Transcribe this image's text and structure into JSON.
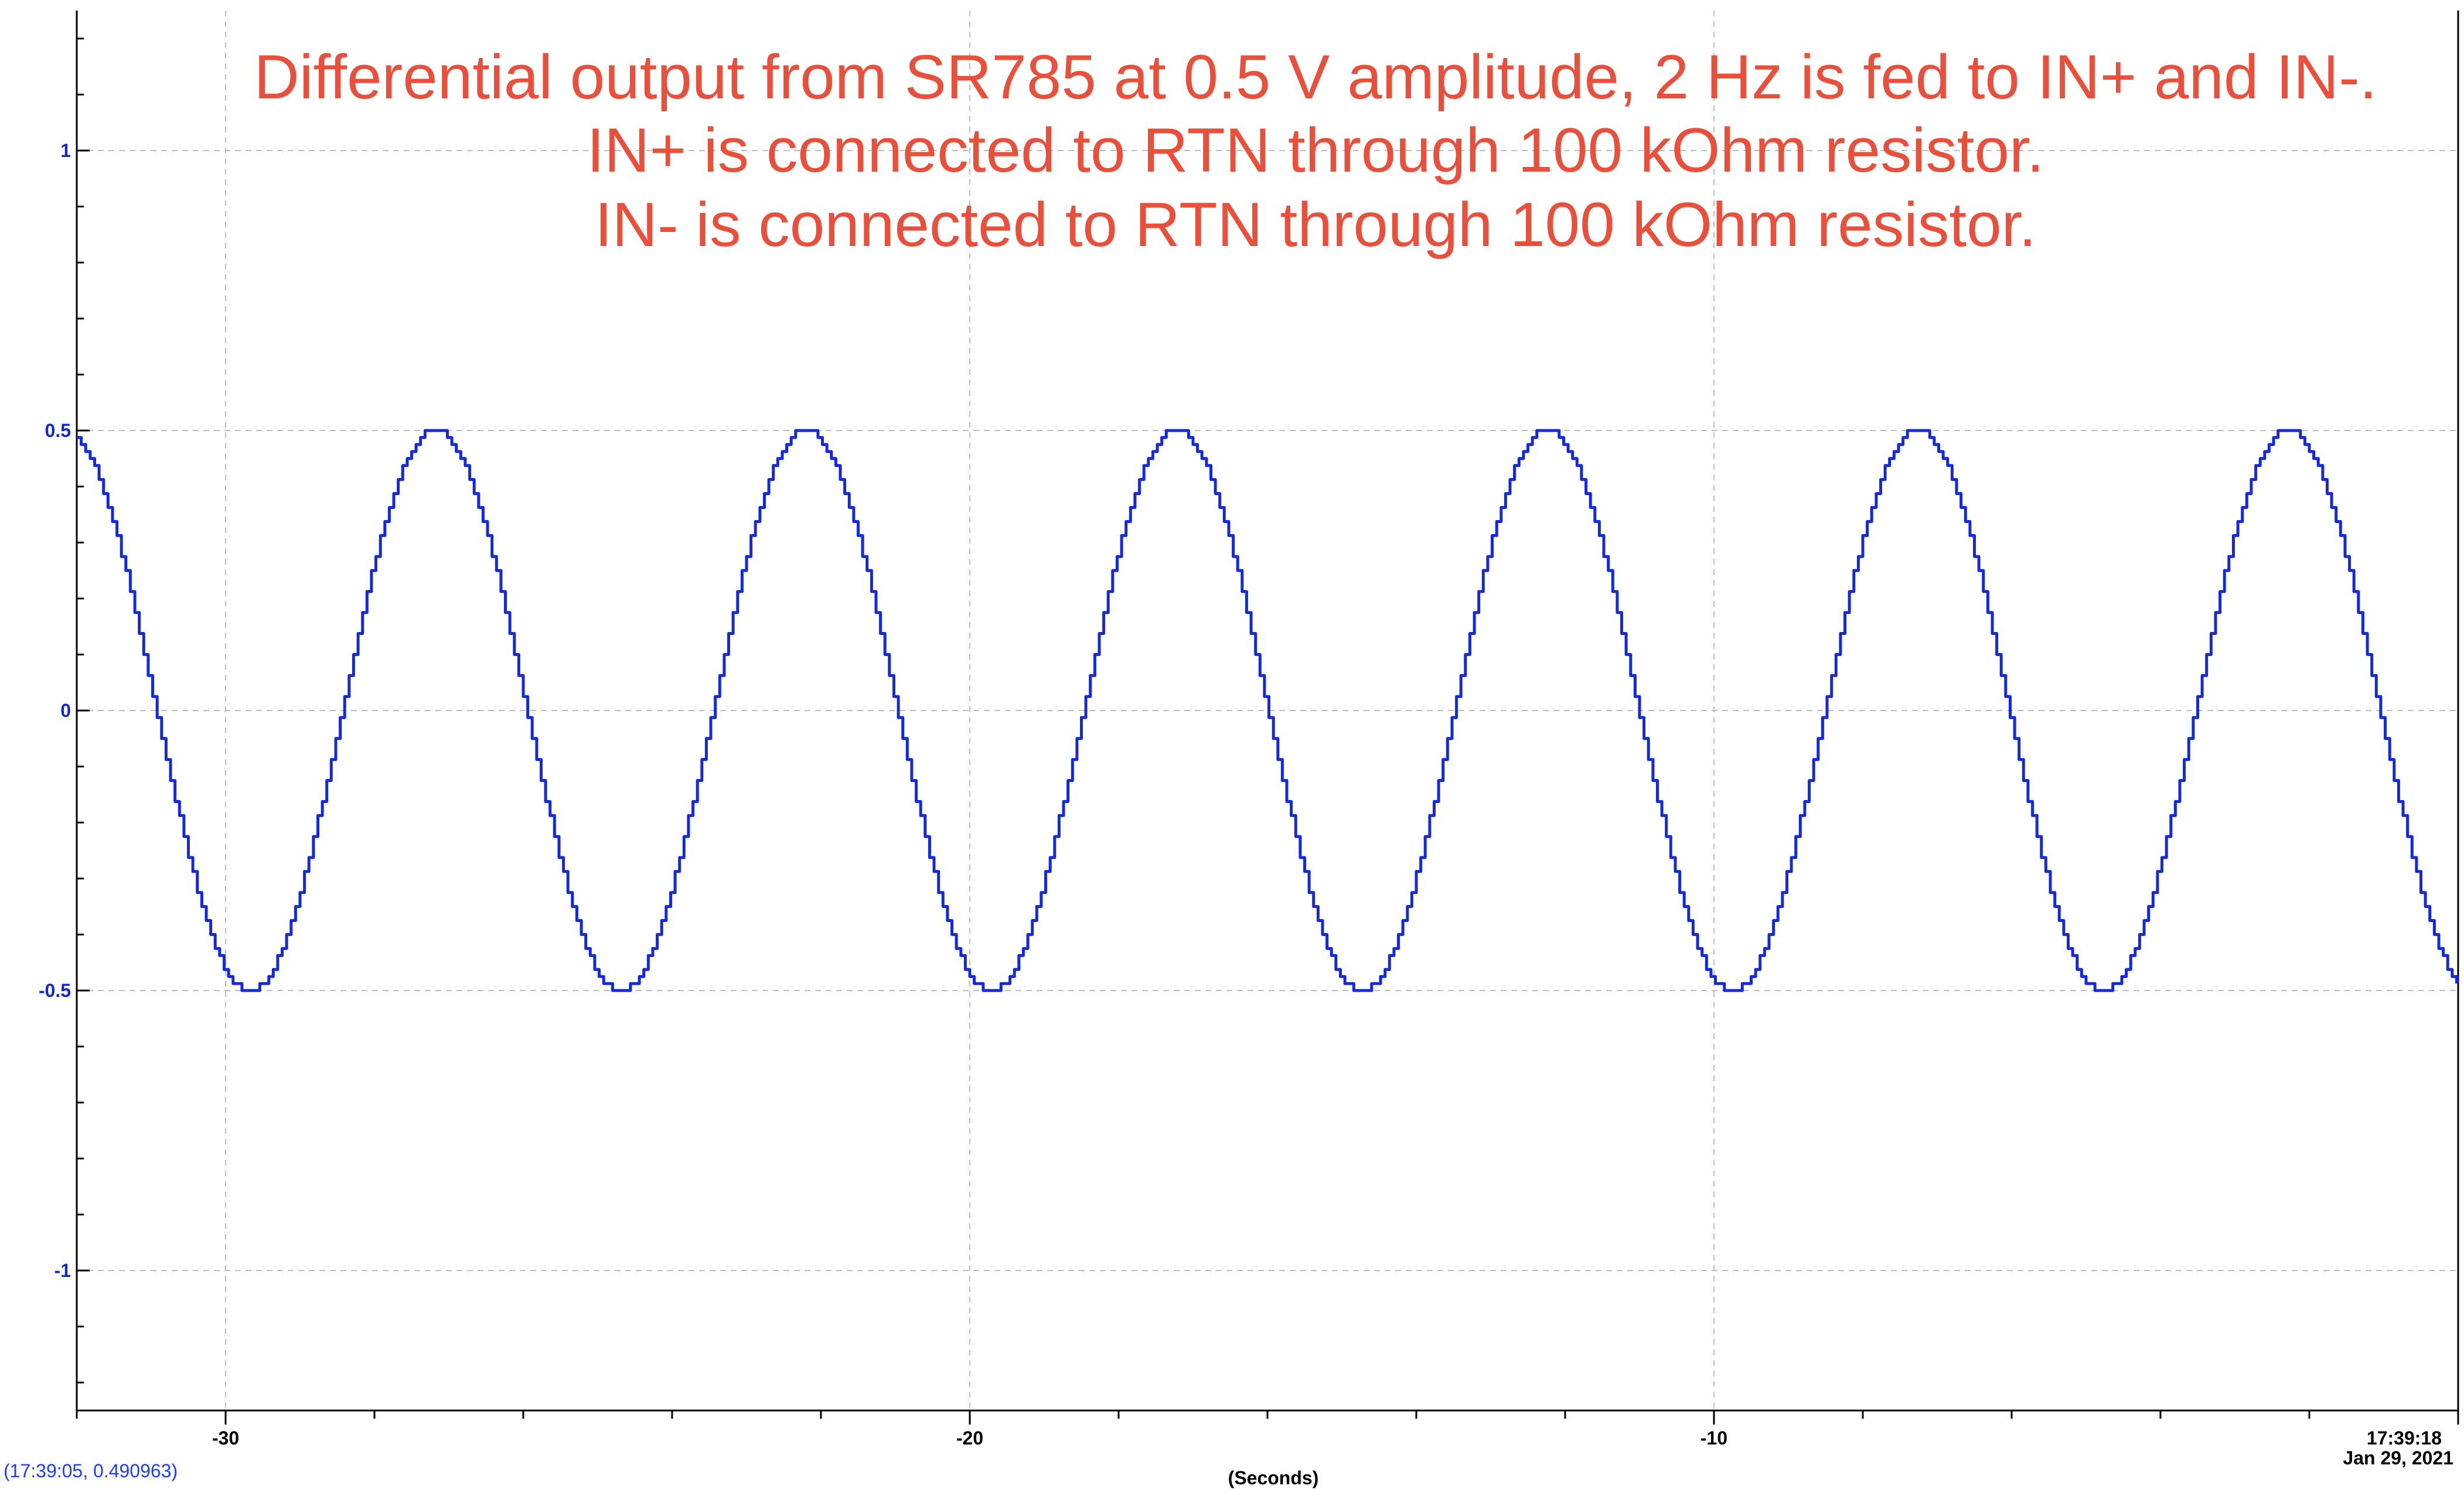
{
  "chart_data": {
    "type": "line",
    "title": "",
    "annotation": [
      "Differential output from SR785 at 0.5 V amplitude, 2 Hz is fed to IN+ and IN-.",
      "IN+ is connected to RTN through 100 kOhm resistor.",
      "IN- is connected to RTN through 100 kOhm resistor."
    ],
    "xlabel": "(Seconds)",
    "ylabel": "",
    "xlim": [
      -32,
      0
    ],
    "ylim": [
      -1.25,
      1.25
    ],
    "grid": true,
    "x_ticks": [
      {
        "value": -30,
        "label": "-30"
      },
      {
        "value": -20,
        "label": "-20"
      },
      {
        "value": -10,
        "label": "-10"
      }
    ],
    "x_end_label": [
      "17:39:18",
      "Jan 29, 2021"
    ],
    "y_ticks": [
      {
        "value": 1,
        "label": "1"
      },
      {
        "value": 0.5,
        "label": "0.5"
      },
      {
        "value": 0,
        "label": "0"
      },
      {
        "value": -0.5,
        "label": "-0.5"
      },
      {
        "value": -1,
        "label": "-1"
      }
    ],
    "series": [
      {
        "color": "#1428dc",
        "amplitude": 0.5,
        "apparent_period_s": 4.98,
        "phase_ref_peak_x": -27.2,
        "x_range": [
          -32,
          0
        ]
      }
    ]
  },
  "cursor_readout": "(17:39:05, 0.490963)",
  "colors": {
    "trace": "#1428dc",
    "annotation": "#e8503c",
    "y_tick": "#1428c8",
    "readout": "#1e3cff",
    "grid": "#bdbdbd"
  }
}
